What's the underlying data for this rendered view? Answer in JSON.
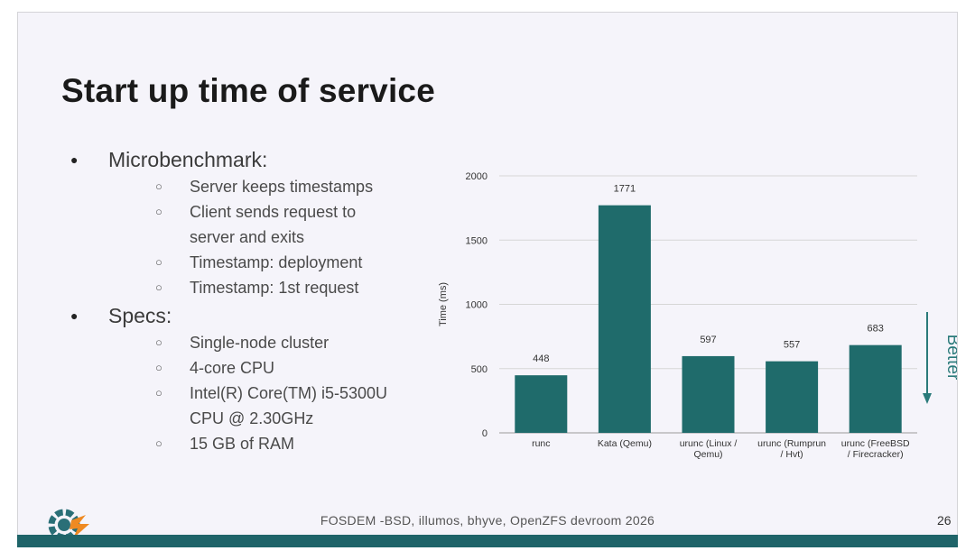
{
  "slide": {
    "title": "Start up time of service",
    "bullets": [
      {
        "text": "Microbenchmark:",
        "sub": [
          "Server keeps timestamps",
          "Client sends request to server and exits",
          "Timestamp: deployment",
          "Timestamp: 1st request"
        ]
      },
      {
        "text": "Specs:",
        "sub": [
          "Single-node cluster",
          "4-core CPU",
          "Intel(R) Core(TM) i5-5300U CPU @ 2.30GHz",
          "15 GB of RAM"
        ]
      }
    ],
    "better_label": "Better",
    "footer": "FOSDEM -BSD, illumos, bhyve, OpenZFS devroom 2026",
    "page_number": "26"
  },
  "colors": {
    "bar": "#1f6b6b",
    "footer_bar": "#1f6469",
    "better": "#2a7a7a",
    "logo_blue": "#2a6f77",
    "logo_orange": "#ef8a22"
  },
  "icons": {
    "logo": "fosdem-gear-logo-icon",
    "arrow": "arrow-down-icon"
  },
  "chart_data": {
    "type": "bar",
    "categories": [
      [
        "runc"
      ],
      [
        "Kata (Qemu)"
      ],
      [
        "urunc (Linux /",
        "Qemu)"
      ],
      [
        "urunc (Rumprun",
        "/ Hvt)"
      ],
      [
        "urunc (FreeBSD",
        "/ Firecracker)"
      ]
    ],
    "values": [
      448,
      1771,
      597,
      557,
      683
    ],
    "ylabel": "Time (ms)",
    "ylim": [
      0,
      2000
    ],
    "yticks": [
      0,
      500,
      1000,
      1500,
      2000
    ],
    "grid": true,
    "data_labels": true
  }
}
